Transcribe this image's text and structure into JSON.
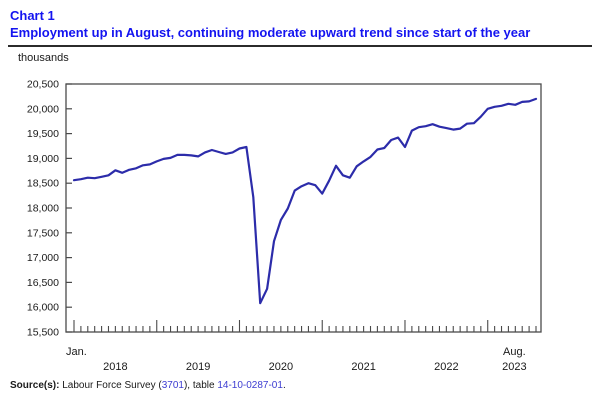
{
  "header": {
    "chart_label": "Chart 1",
    "title": "Employment up in August, continuing moderate upward trend since start of the year"
  },
  "colors": {
    "title_blue": "#1414f0",
    "line_blue": "#2c2caa",
    "axis_gray": "#4a4a4a",
    "text_dark": "#1a1a1a",
    "link_blue": "#3c3cd1"
  },
  "chart_data": {
    "type": "line",
    "title": "Employment up in August, continuing moderate upward trend since start of the year",
    "ylabel": "thousands",
    "unit_label": "thousands",
    "frequency": "monthly",
    "x_start": "2018-01",
    "x_end": "2023-08",
    "x_first_month_label": "Jan.",
    "x_last_month_label": "Aug.",
    "x_year_labels": [
      "2018",
      "2019",
      "2020",
      "2021",
      "2022",
      "2023"
    ],
    "ylim": [
      15500,
      20500
    ],
    "ytick_step": 500,
    "grid": false,
    "legend": "none",
    "series": [
      {
        "name": "Employment (thousands)",
        "values": [
          18560,
          18580,
          18610,
          18600,
          18630,
          18660,
          18760,
          18710,
          18770,
          18800,
          18860,
          18880,
          18940,
          18990,
          19010,
          19070,
          19070,
          19060,
          19040,
          19120,
          19170,
          19130,
          19090,
          19120,
          19200,
          19230,
          18220,
          16080,
          16370,
          17330,
          17760,
          17990,
          18350,
          18440,
          18500,
          18460,
          18290,
          18550,
          18850,
          18660,
          18610,
          18840,
          18940,
          19030,
          19180,
          19210,
          19370,
          19420,
          19230,
          19560,
          19630,
          19650,
          19690,
          19640,
          19610,
          19580,
          19600,
          19700,
          19710,
          19840,
          20000,
          20040,
          20060,
          20100,
          20080,
          20140,
          20150,
          20200
        ]
      }
    ]
  },
  "source": {
    "label": "Source(s):",
    "text_before": " Labour Force Survey (",
    "link_survey": "3701",
    "text_middle": "), table ",
    "link_table": "14-10-0287-01",
    "text_after": "."
  }
}
